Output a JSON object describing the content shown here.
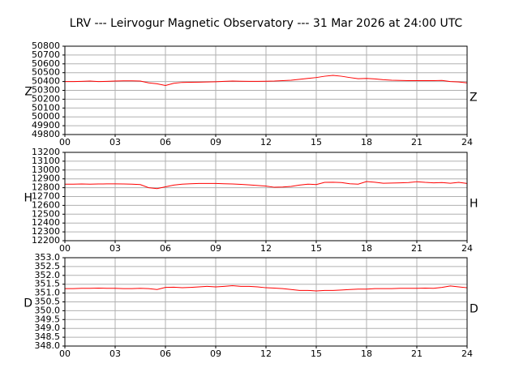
{
  "chart_data": [
    {
      "type": "line",
      "title": "LRV --- Leirvogur Magnetic Observatory --- 31 Mar 2026 at 24:00 UTC",
      "ylabel": "Z",
      "grid": true,
      "xlim": [
        0,
        24
      ],
      "xticks": [
        {
          "value": 0,
          "label": "00"
        },
        {
          "value": 3,
          "label": "03"
        },
        {
          "value": 6,
          "label": "06"
        },
        {
          "value": 9,
          "label": "09"
        },
        12,
        15,
        18,
        21,
        24
      ],
      "ylim": [
        49800,
        50800
      ],
      "yticks": [
        49800,
        49900,
        50000,
        50100,
        50200,
        50300,
        50400,
        50500,
        50600,
        50700,
        50800
      ],
      "x": [
        0,
        0.5,
        1,
        1.5,
        2,
        2.5,
        3,
        3.5,
        4,
        4.5,
        5,
        5.5,
        6,
        6.5,
        7,
        7.5,
        8,
        8.5,
        9,
        9.5,
        10,
        10.5,
        11,
        11.5,
        12,
        12.5,
        13,
        13.5,
        14,
        14.5,
        15,
        15.5,
        16,
        16.5,
        17,
        17.5,
        18,
        18.5,
        19,
        19.5,
        20,
        20.5,
        21,
        21.5,
        22,
        22.5,
        23,
        23.5,
        24
      ],
      "series": [
        {
          "color": "#ff0000",
          "values": [
            50400,
            50400,
            50402,
            50405,
            50400,
            50402,
            50405,
            50408,
            50408,
            50405,
            50385,
            50375,
            50355,
            50380,
            50390,
            50392,
            50393,
            50395,
            50398,
            50402,
            50405,
            50403,
            50402,
            50402,
            50403,
            50405,
            50410,
            50415,
            50425,
            50435,
            50445,
            50460,
            50470,
            50460,
            50445,
            50432,
            50435,
            50430,
            50420,
            50415,
            50412,
            50410,
            50410,
            50410,
            50410,
            50412,
            50400,
            50395,
            50385
          ]
        }
      ]
    },
    {
      "type": "line",
      "ylabel": "H",
      "grid": true,
      "xlim": [
        0,
        24
      ],
      "xticks": [
        {
          "value": 0,
          "label": "00"
        },
        {
          "value": 3,
          "label": "03"
        },
        {
          "value": 6,
          "label": "06"
        },
        {
          "value": 9,
          "label": "09"
        },
        12,
        15,
        18,
        21,
        24
      ],
      "ylim": [
        12200,
        13200
      ],
      "yticks": [
        12200,
        12300,
        12400,
        12500,
        12600,
        12700,
        12800,
        12900,
        13000,
        13100,
        13200
      ],
      "x": [
        0,
        0.5,
        1,
        1.5,
        2,
        2.5,
        3,
        3.5,
        4,
        4.5,
        5,
        5.5,
        6,
        6.5,
        7,
        7.5,
        8,
        8.5,
        9,
        9.5,
        10,
        10.5,
        11,
        11.5,
        12,
        12.5,
        13,
        13.5,
        14,
        14.5,
        15,
        15.5,
        16,
        16.5,
        17,
        17.5,
        18,
        18.5,
        19,
        19.5,
        20,
        20.5,
        21,
        21.5,
        22,
        22.5,
        23,
        23.5,
        24
      ],
      "series": [
        {
          "color": "#ff0000",
          "values": [
            12840,
            12840,
            12842,
            12840,
            12842,
            12843,
            12843,
            12842,
            12840,
            12835,
            12800,
            12790,
            12810,
            12830,
            12840,
            12845,
            12848,
            12848,
            12848,
            12845,
            12842,
            12838,
            12832,
            12825,
            12818,
            12805,
            12808,
            12815,
            12830,
            12840,
            12835,
            12860,
            12862,
            12858,
            12845,
            12840,
            12870,
            12862,
            12850,
            12852,
            12855,
            12858,
            12868,
            12860,
            12855,
            12858,
            12850,
            12860,
            12848
          ]
        }
      ]
    },
    {
      "type": "line",
      "ylabel": "D",
      "grid": true,
      "xlim": [
        0,
        24
      ],
      "xticks": [
        {
          "value": 0,
          "label": "00"
        },
        {
          "value": 3,
          "label": "03"
        },
        {
          "value": 6,
          "label": "06"
        },
        {
          "value": 9,
          "label": "09"
        },
        12,
        15,
        18,
        21,
        24
      ],
      "ylim": [
        348,
        353
      ],
      "yticks": [
        {
          "value": 348,
          "label": "348.0"
        },
        348.5,
        {
          "value": 349,
          "label": "349.0"
        },
        349.5,
        {
          "value": 350,
          "label": "350.0"
        },
        350.5,
        {
          "value": 351,
          "label": "351.0"
        },
        351.5,
        {
          "value": 352,
          "label": "352.0"
        },
        352.5,
        {
          "value": 353,
          "label": "353.0"
        }
      ],
      "x": [
        0,
        0.5,
        1,
        1.5,
        2,
        2.5,
        3,
        3.5,
        4,
        4.5,
        5,
        5.5,
        6,
        6.5,
        7,
        7.5,
        8,
        8.5,
        9,
        9.5,
        10,
        10.5,
        11,
        11.5,
        12,
        12.5,
        13,
        13.5,
        14,
        14.5,
        15,
        15.5,
        16,
        16.5,
        17,
        17.5,
        18,
        18.5,
        19,
        19.5,
        20,
        20.5,
        21,
        21.5,
        22,
        22.5,
        23,
        23.5,
        24
      ],
      "series": [
        {
          "color": "#ff0000",
          "values": [
            351.25,
            351.25,
            351.27,
            351.27,
            351.28,
            351.27,
            351.27,
            351.25,
            351.25,
            351.27,
            351.25,
            351.2,
            351.32,
            351.33,
            351.3,
            351.32,
            351.35,
            351.38,
            351.35,
            351.38,
            351.42,
            351.38,
            351.38,
            351.35,
            351.3,
            351.28,
            351.25,
            351.2,
            351.15,
            351.15,
            351.12,
            351.15,
            351.15,
            351.17,
            351.2,
            351.22,
            351.22,
            351.25,
            351.25,
            351.25,
            351.27,
            351.27,
            351.27,
            351.28,
            351.27,
            351.32,
            351.4,
            351.35,
            351.3
          ]
        }
      ]
    }
  ]
}
